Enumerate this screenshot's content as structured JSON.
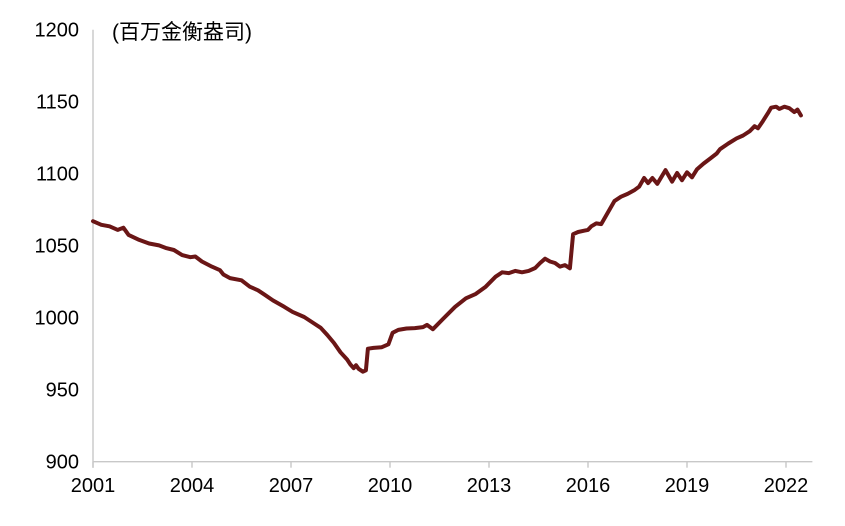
{
  "chart_data": {
    "type": "line",
    "unit_label": "(百万金衡盎司)",
    "x_ticks": [
      2001,
      2004,
      2007,
      2010,
      2013,
      2016,
      2019,
      2022
    ],
    "y_ticks": [
      900,
      950,
      1000,
      1050,
      1100,
      1150,
      1200
    ],
    "ylim": [
      900,
      1200
    ],
    "xlim": [
      2001,
      2022.8
    ],
    "legend": "none",
    "grid": "off",
    "line_color": "#6a1616",
    "axis_color": "#c8c8c8",
    "text_color": "#000000",
    "points": [
      [
        2001.0,
        1067.0
      ],
      [
        2001.25,
        1064.5
      ],
      [
        2001.5,
        1063.5
      ],
      [
        2001.75,
        1061.0
      ],
      [
        2001.92,
        1062.5
      ],
      [
        2002.08,
        1057.5
      ],
      [
        2002.4,
        1054.0
      ],
      [
        2002.7,
        1051.5
      ],
      [
        2003.0,
        1050.2
      ],
      [
        2003.2,
        1048.5
      ],
      [
        2003.45,
        1047.0
      ],
      [
        2003.7,
        1043.5
      ],
      [
        2003.95,
        1042.0
      ],
      [
        2004.1,
        1042.5
      ],
      [
        2004.3,
        1039.0
      ],
      [
        2004.6,
        1035.5
      ],
      [
        2004.85,
        1033.0
      ],
      [
        2004.95,
        1030.0
      ],
      [
        2005.15,
        1027.5
      ],
      [
        2005.5,
        1026.0
      ],
      [
        2005.75,
        1021.5
      ],
      [
        2006.0,
        1019.0
      ],
      [
        2006.2,
        1016.0
      ],
      [
        2006.45,
        1012.0
      ],
      [
        2006.8,
        1007.5
      ],
      [
        2007.05,
        1004.0
      ],
      [
        2007.4,
        1000.5
      ],
      [
        2007.7,
        996.0
      ],
      [
        2007.9,
        993.0
      ],
      [
        2008.1,
        988.0
      ],
      [
        2008.3,
        982.5
      ],
      [
        2008.5,
        976.0
      ],
      [
        2008.7,
        971.0
      ],
      [
        2008.8,
        967.5
      ],
      [
        2008.9,
        965.0
      ],
      [
        2008.97,
        967.0
      ],
      [
        2009.05,
        964.5
      ],
      [
        2009.18,
        962.5
      ],
      [
        2009.27,
        963.5
      ],
      [
        2009.33,
        978.5
      ],
      [
        2009.5,
        979.0
      ],
      [
        2009.75,
        979.5
      ],
      [
        2009.95,
        981.5
      ],
      [
        2010.08,
        989.5
      ],
      [
        2010.25,
        991.5
      ],
      [
        2010.5,
        992.5
      ],
      [
        2010.75,
        992.8
      ],
      [
        2011.0,
        993.5
      ],
      [
        2011.12,
        995.0
      ],
      [
        2011.3,
        992.0
      ],
      [
        2011.6,
        999.0
      ],
      [
        2011.97,
        1007.5
      ],
      [
        2012.3,
        1013.5
      ],
      [
        2012.6,
        1016.5
      ],
      [
        2012.9,
        1021.5
      ],
      [
        2013.2,
        1028.5
      ],
      [
        2013.4,
        1031.5
      ],
      [
        2013.6,
        1031.0
      ],
      [
        2013.8,
        1032.5
      ],
      [
        2014.0,
        1031.5
      ],
      [
        2014.2,
        1032.5
      ],
      [
        2014.4,
        1034.5
      ],
      [
        2014.55,
        1038.0
      ],
      [
        2014.7,
        1041.0
      ],
      [
        2014.85,
        1039.0
      ],
      [
        2015.0,
        1038.0
      ],
      [
        2015.15,
        1035.5
      ],
      [
        2015.3,
        1036.5
      ],
      [
        2015.45,
        1034.3
      ],
      [
        2015.55,
        1058.0
      ],
      [
        2015.7,
        1059.5
      ],
      [
        2015.9,
        1060.5
      ],
      [
        2016.0,
        1061.0
      ],
      [
        2016.1,
        1063.5
      ],
      [
        2016.25,
        1065.5
      ],
      [
        2016.4,
        1065.0
      ],
      [
        2016.6,
        1073.0
      ],
      [
        2016.8,
        1081.0
      ],
      [
        2017.0,
        1084.0
      ],
      [
        2017.2,
        1086.0
      ],
      [
        2017.4,
        1088.5
      ],
      [
        2017.55,
        1091.0
      ],
      [
        2017.7,
        1097.0
      ],
      [
        2017.82,
        1093.5
      ],
      [
        2017.95,
        1097.0
      ],
      [
        2018.1,
        1093.0
      ],
      [
        2018.35,
        1102.5
      ],
      [
        2018.55,
        1094.5
      ],
      [
        2018.7,
        1100.5
      ],
      [
        2018.85,
        1095.5
      ],
      [
        2019.0,
        1101.0
      ],
      [
        2019.15,
        1097.5
      ],
      [
        2019.3,
        1103.0
      ],
      [
        2019.5,
        1107.0
      ],
      [
        2019.7,
        1110.5
      ],
      [
        2019.9,
        1114.0
      ],
      [
        2020.0,
        1117.0
      ],
      [
        2020.25,
        1121.0
      ],
      [
        2020.5,
        1124.5
      ],
      [
        2020.7,
        1126.5
      ],
      [
        2020.9,
        1129.5
      ],
      [
        2021.05,
        1133.0
      ],
      [
        2021.15,
        1131.5
      ],
      [
        2021.3,
        1136.5
      ],
      [
        2021.45,
        1142.0
      ],
      [
        2021.55,
        1145.8
      ],
      [
        2021.7,
        1146.5
      ],
      [
        2021.8,
        1145.0
      ],
      [
        2021.95,
        1146.5
      ],
      [
        2022.1,
        1145.5
      ],
      [
        2022.25,
        1142.8
      ],
      [
        2022.35,
        1144.5
      ],
      [
        2022.45,
        1140.5
      ]
    ]
  }
}
